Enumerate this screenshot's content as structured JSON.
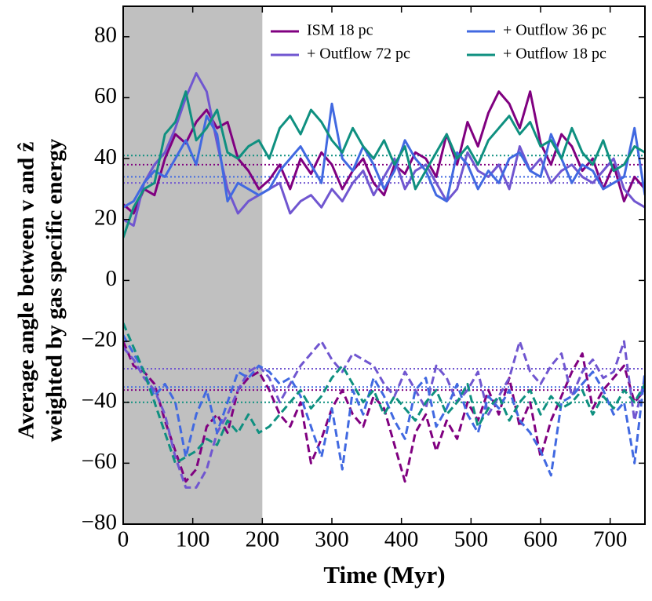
{
  "chart_data": {
    "type": "line",
    "xlabel": "Time (Myr)",
    "ylabel": [
      "Average angle between v and ẑ",
      "weighted by gas specific energy"
    ],
    "xlim": [
      0,
      750
    ],
    "ylim": [
      -80,
      90
    ],
    "xticks": [
      0,
      100,
      200,
      300,
      400,
      500,
      600,
      700
    ],
    "yticks": [
      {
        "value": -80,
        "label": "−80"
      },
      {
        "value": -60,
        "label": "−60"
      },
      {
        "value": -40,
        "label": "−40"
      },
      {
        "value": -20,
        "label": "−20"
      },
      0,
      20,
      40,
      60,
      80
    ],
    "shaded_xrange": [
      0,
      200
    ],
    "legend": "upper right",
    "x": [
      0,
      15,
      30,
      45,
      60,
      75,
      90,
      105,
      120,
      135,
      150,
      165,
      180,
      195,
      210,
      225,
      240,
      255,
      270,
      285,
      300,
      315,
      330,
      345,
      360,
      375,
      390,
      405,
      420,
      435,
      450,
      465,
      480,
      495,
      510,
      525,
      540,
      555,
      570,
      585,
      600,
      615,
      630,
      645,
      660,
      675,
      690,
      705,
      720,
      735,
      750
    ],
    "series": [
      {
        "name": "ISM 18 pc",
        "color": "#800080",
        "values": [
          25,
          22,
          30,
          28,
          40,
          48,
          45,
          52,
          56,
          50,
          52,
          40,
          36,
          30,
          33,
          38,
          30,
          40,
          35,
          42,
          38,
          30,
          36,
          40,
          32,
          28,
          38,
          35,
          42,
          40,
          34,
          48,
          38,
          52,
          44,
          55,
          62,
          58,
          50,
          62,
          45,
          38,
          48,
          44,
          36,
          40,
          30,
          38,
          26,
          34,
          30
        ],
        "negative_values": [
          -20,
          -28,
          -30,
          -34,
          -46,
          -56,
          -66,
          -62,
          -48,
          -44,
          -50,
          -36,
          -32,
          -30,
          -36,
          -44,
          -48,
          -40,
          -60,
          -52,
          -42,
          -36,
          -44,
          -48,
          -38,
          -42,
          -54,
          -66,
          -50,
          -44,
          -56,
          -46,
          -52,
          -40,
          -46,
          -36,
          -44,
          -32,
          -48,
          -40,
          -58,
          -46,
          -38,
          -30,
          -24,
          -42,
          -36,
          -32,
          -28,
          -40,
          -36
        ],
        "mean": 38,
        "negative_mean": -36
      },
      {
        "name": "+ Outflow 72 pc",
        "color": "#7056d0",
        "values": [
          20,
          18,
          32,
          38,
          42,
          50,
          60,
          68,
          62,
          45,
          30,
          22,
          26,
          28,
          30,
          32,
          22,
          26,
          28,
          24,
          30,
          26,
          32,
          36,
          28,
          34,
          40,
          30,
          36,
          38,
          32,
          26,
          30,
          42,
          36,
          34,
          38,
          30,
          44,
          36,
          40,
          32,
          36,
          38,
          34,
          32,
          36,
          40,
          30,
          26,
          24
        ],
        "negative_values": [
          -22,
          -26,
          -32,
          -36,
          -44,
          -58,
          -68,
          -68,
          -62,
          -50,
          -44,
          -36,
          -30,
          -28,
          -32,
          -40,
          -34,
          -28,
          -24,
          -20,
          -26,
          -30,
          -24,
          -26,
          -28,
          -34,
          -38,
          -30,
          -36,
          -42,
          -28,
          -32,
          -40,
          -36,
          -30,
          -44,
          -38,
          -32,
          -20,
          -30,
          -34,
          -28,
          -24,
          -38,
          -30,
          -26,
          -32,
          -30,
          -20,
          -46,
          -32
        ],
        "mean": 32,
        "negative_mean": -29
      },
      {
        "name": "+ Outflow 36 pc",
        "color": "#4169e1",
        "values": [
          24,
          26,
          32,
          36,
          34,
          40,
          46,
          38,
          54,
          48,
          26,
          32,
          30,
          28,
          30,
          36,
          40,
          44,
          38,
          32,
          58,
          40,
          36,
          44,
          38,
          30,
          36,
          46,
          40,
          36,
          28,
          26,
          42,
          38,
          30,
          36,
          32,
          40,
          42,
          36,
          34,
          48,
          40,
          32,
          38,
          36,
          30,
          32,
          34,
          50,
          28
        ],
        "negative_values": [
          -18,
          -24,
          -30,
          -38,
          -34,
          -40,
          -58,
          -44,
          -36,
          -50,
          -40,
          -30,
          -32,
          -28,
          -30,
          -34,
          -32,
          -38,
          -48,
          -58,
          -42,
          -62,
          -36,
          -44,
          -32,
          -38,
          -46,
          -52,
          -36,
          -32,
          -48,
          -42,
          -34,
          -44,
          -50,
          -38,
          -42,
          -36,
          -46,
          -50,
          -56,
          -64,
          -40,
          -38,
          -34,
          -30,
          -36,
          -44,
          -40,
          -60,
          -30
        ],
        "mean": 34,
        "negative_mean": -35
      },
      {
        "name": "+ Outflow 18 pc",
        "color": "#0f9080",
        "values": [
          14,
          24,
          30,
          32,
          48,
          52,
          62,
          46,
          50,
          56,
          42,
          40,
          44,
          46,
          40,
          50,
          54,
          48,
          56,
          52,
          46,
          42,
          50,
          44,
          40,
          46,
          38,
          44,
          30,
          36,
          42,
          48,
          40,
          44,
          38,
          46,
          50,
          54,
          48,
          52,
          44,
          46,
          40,
          50,
          42,
          38,
          46,
          36,
          38,
          44,
          42
        ],
        "negative_values": [
          -14,
          -22,
          -30,
          -40,
          -50,
          -60,
          -58,
          -56,
          -52,
          -54,
          -46,
          -50,
          -44,
          -50,
          -48,
          -44,
          -40,
          -36,
          -42,
          -38,
          -32,
          -28,
          -34,
          -40,
          -36,
          -44,
          -38,
          -42,
          -46,
          -40,
          -36,
          -44,
          -40,
          -34,
          -48,
          -42,
          -38,
          -46,
          -40,
          -36,
          -44,
          -38,
          -42,
          -40,
          -36,
          -44,
          -38,
          -42,
          -36,
          -40,
          -34
        ],
        "mean": 41,
        "negative_mean": -40
      }
    ]
  }
}
